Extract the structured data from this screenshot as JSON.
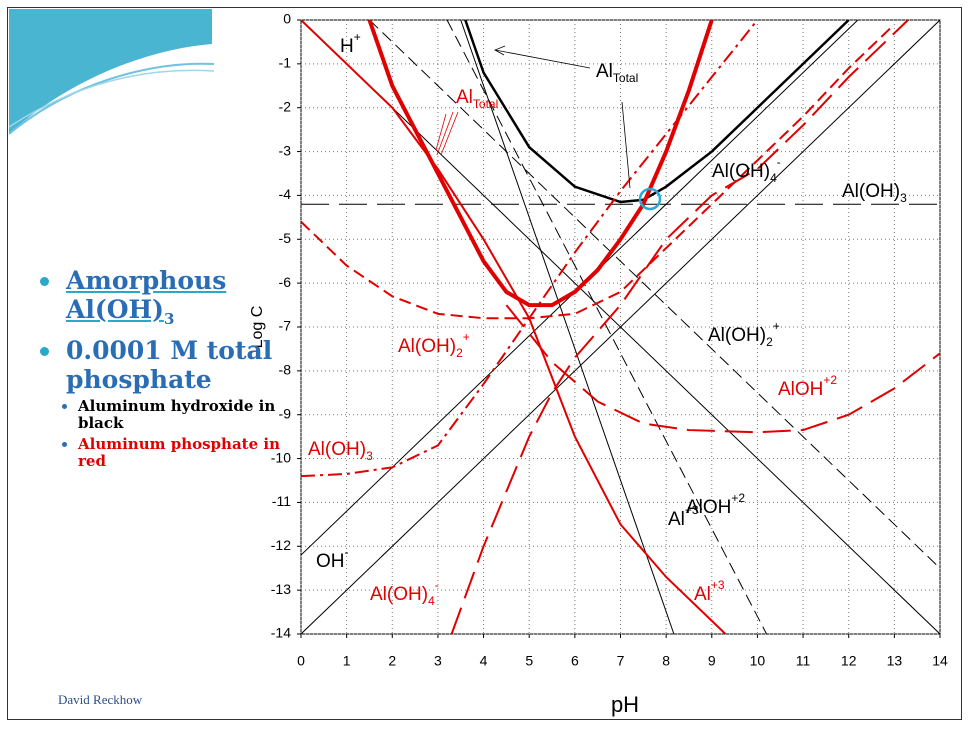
{
  "slide": {
    "bullets": [
      {
        "text": "Amorphous Al(OH)",
        "sub": "3"
      },
      {
        "text": "0.0001 M total phosphate"
      }
    ],
    "sub_bullets": [
      {
        "text": "Aluminum hydroxide in black",
        "color": "#000000"
      },
      {
        "text": "Aluminum phosphate in red",
        "color": "#e00000"
      }
    ],
    "footer": "David Reckhow"
  },
  "chart_data": {
    "type": "line",
    "xlabel": "pH",
    "ylabel": "Log C",
    "xlim": [
      0,
      14
    ],
    "ylim": [
      -14,
      0
    ],
    "xticks": [
      0,
      1,
      2,
      3,
      4,
      5,
      6,
      7,
      8,
      9,
      10,
      11,
      12,
      13,
      14
    ],
    "yticks": [
      0,
      -1,
      -2,
      -3,
      -4,
      -5,
      -6,
      -7,
      -8,
      -9,
      -10,
      -11,
      -12,
      -13,
      -14
    ],
    "grid": true,
    "series": [
      {
        "color": "#000000",
        "dash": "solid",
        "width": 1,
        "x": [
          0,
          14
        ],
        "values": [
          0,
          -14
        ]
      },
      {
        "color": "#000000",
        "dash": "solid",
        "width": 1,
        "x": [
          0,
          14
        ],
        "values": [
          -14,
          0
        ]
      },
      {
        "color": "#000000",
        "dash": "solid",
        "width": 1,
        "x": [
          3.5,
          8.17
        ],
        "values": [
          0,
          -14
        ]
      },
      {
        "color": "#000000",
        "dash": "dash",
        "width": 1,
        "x": [
          3.2,
          10.2
        ],
        "values": [
          0,
          -14
        ]
      },
      {
        "color": "#000000",
        "dash": "dash",
        "width": 1,
        "x": [
          1.5,
          14
        ],
        "values": [
          0,
          -12.5
        ]
      },
      {
        "color": "#000000",
        "dash": "longdash",
        "width": 1,
        "x": [
          0,
          14
        ],
        "values": [
          -4.2,
          -4.2
        ]
      },
      {
        "color": "#000000",
        "dash": "solid",
        "width": 1,
        "x": [
          0,
          12.2
        ],
        "values": [
          -12.2,
          0
        ]
      },
      {
        "color": "#000000",
        "dash": "solid",
        "width": 2.5,
        "x": [
          3.6,
          4,
          5,
          6,
          7,
          7.5,
          8,
          9,
          10,
          11,
          12
        ],
        "values": [
          0,
          -1.2,
          -2.9,
          -3.8,
          -4.15,
          -4.1,
          -3.8,
          -3,
          -2,
          -1,
          0
        ]
      },
      {
        "color": "#e00000",
        "dash": "solid",
        "width": 4,
        "x": [
          1.5,
          2,
          3,
          4,
          4.5,
          5,
          5.5,
          6,
          6.5,
          7,
          7.5,
          8,
          8.5,
          9
        ],
        "values": [
          0,
          -1.5,
          -3.5,
          -5.5,
          -6.2,
          -6.5,
          -6.5,
          -6.2,
          -5.7,
          -5,
          -4.2,
          -3,
          -1.6,
          0
        ]
      },
      {
        "color": "#e00000",
        "dash": "solid",
        "width": 2,
        "x": [
          0,
          2,
          3,
          4,
          5,
          6,
          7,
          8,
          9.3
        ],
        "values": [
          0,
          -2,
          -3.4,
          -5,
          -6.8,
          -9.5,
          -11.5,
          -12.7,
          -14
        ]
      },
      {
        "color": "#e00000",
        "dash": "longdash",
        "width": 2,
        "x": [
          4.5,
          5.5,
          6.5,
          7.5,
          8.5,
          10,
          11,
          12,
          13,
          14
        ],
        "values": [
          -6.5,
          -7.8,
          -8.7,
          -9.2,
          -9.35,
          -9.4,
          -9.35,
          -9,
          -8.4,
          -7.6
        ]
      },
      {
        "color": "#e00000",
        "dash": "dash",
        "width": 2,
        "x": [
          0,
          1,
          2,
          3,
          4,
          5,
          6,
          7,
          8,
          9,
          10,
          11,
          12,
          13
        ],
        "values": [
          -4.6,
          -5.6,
          -6.3,
          -6.7,
          -6.8,
          -6.8,
          -6.7,
          -6.2,
          -5.2,
          -4.2,
          -3.2,
          -2.2,
          -1.1,
          -0.1
        ]
      },
      {
        "color": "#e00000",
        "dash": "dashdot",
        "width": 2,
        "x": [
          0,
          1,
          2,
          3,
          4,
          5,
          6,
          7,
          8,
          9,
          10
        ],
        "values": [
          -10.4,
          -10.35,
          -10.2,
          -9.7,
          -8.3,
          -6.8,
          -5.3,
          -3.9,
          -2.6,
          -1.3,
          0
        ]
      },
      {
        "color": "#e00000",
        "dash": "longdash",
        "width": 2,
        "x": [
          3.3,
          4,
          5,
          5.5,
          6,
          7,
          8,
          9,
          10,
          11,
          12,
          13,
          13.3
        ],
        "values": [
          -14,
          -12,
          -9.5,
          -8.5,
          -7.7,
          -6.5,
          -5,
          -4,
          -3.4,
          -2.4,
          -1.3,
          -0.3,
          0
        ]
      }
    ],
    "annotations": [
      {
        "text": "H",
        "sup": "+",
        "color": "#000000"
      },
      {
        "text": "Al",
        "sub": "Total",
        "color": "#000000"
      },
      {
        "text": "Al",
        "sub": "Total",
        "color": "#e00000"
      },
      {
        "text": "Al(OH)",
        "sub": "4",
        "sup": "-",
        "color": "#000000"
      },
      {
        "text": "Al(OH)",
        "sub": "3",
        "color": "#000000"
      },
      {
        "text": "Al(OH)",
        "sub": "2",
        "sup": "+",
        "color": "#e00000"
      },
      {
        "text": "Al(OH)",
        "sub": "2",
        "sup": "+",
        "color": "#000000"
      },
      {
        "text": "AlOH",
        "sup": "+2",
        "color": "#e00000"
      },
      {
        "text": "Al(OH)",
        "sub": "3",
        "color": "#e00000"
      },
      {
        "text": "Al",
        "sup": "+3",
        "color": "#000000"
      },
      {
        "text": "AlOH",
        "sup": "+2",
        "color": "#000000"
      },
      {
        "text": "OH",
        "sup": "-",
        "color": "#000000"
      },
      {
        "text": "Al(OH)",
        "sub": "4",
        "sup": "-",
        "color": "#e00000"
      },
      {
        "text": "Al",
        "sup": "+3",
        "color": "#e00000"
      }
    ]
  }
}
